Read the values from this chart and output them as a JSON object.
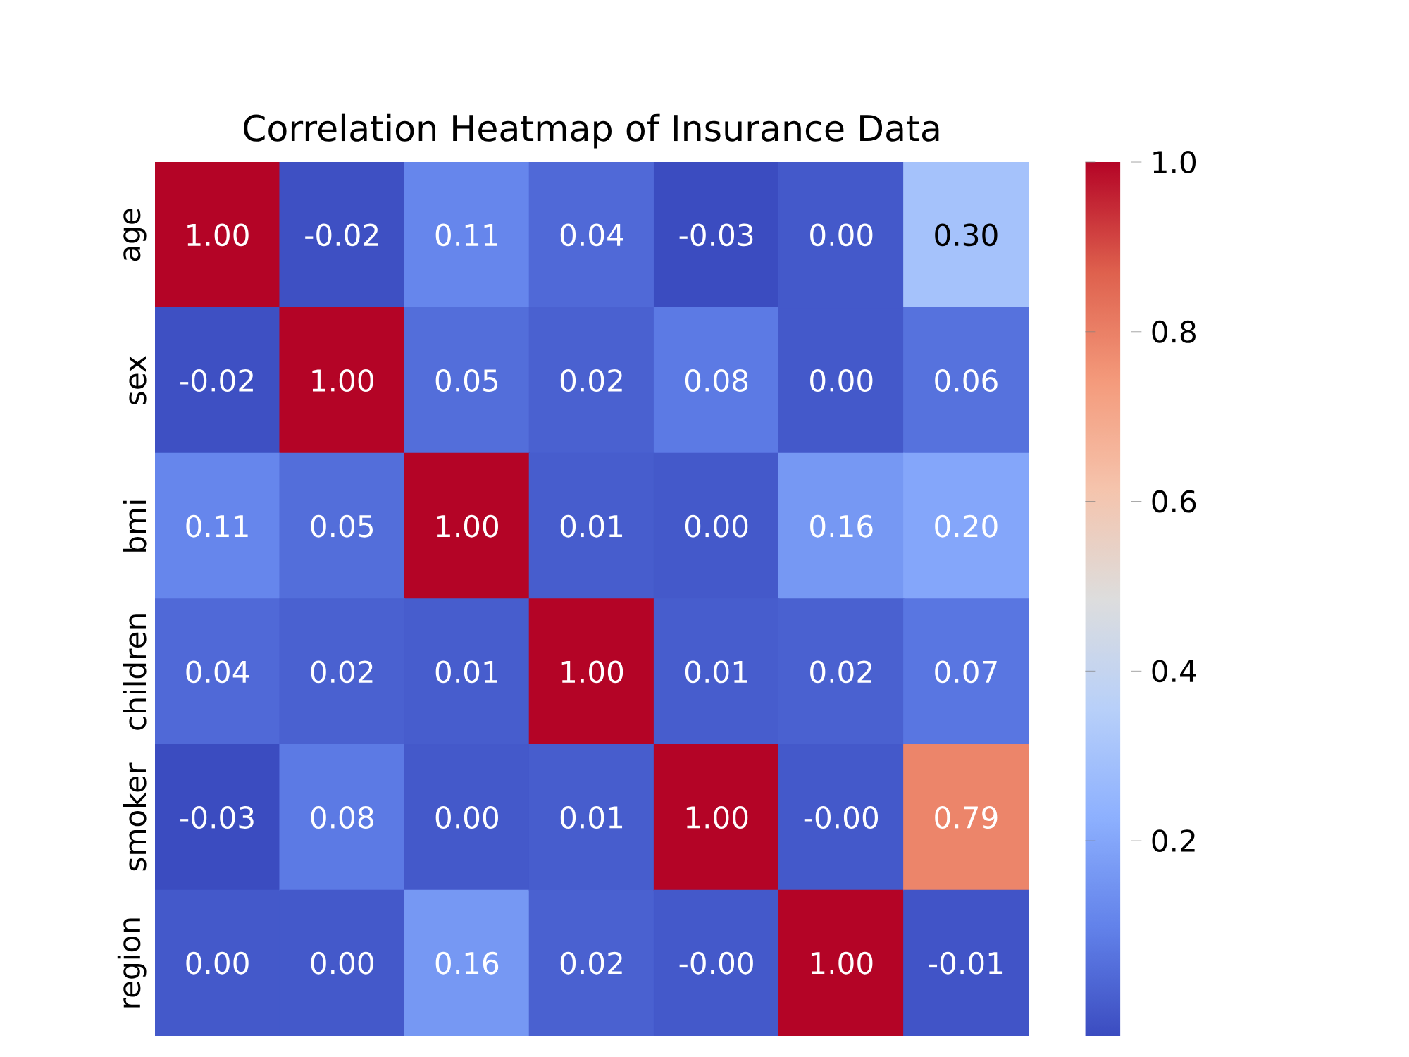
{
  "chart_data": {
    "type": "heatmap",
    "title": "Correlation Heatmap of Insurance Data",
    "categories": [
      null,
      null,
      null,
      null,
      null,
      null,
      null
    ],
    "y_categories": [
      "age",
      "sex",
      "bmi",
      "children",
      "smoker",
      "region"
    ],
    "cells": [
      [
        1.0,
        -0.02,
        0.11,
        0.04,
        -0.03,
        0.0,
        0.3
      ],
      [
        -0.02,
        1.0,
        0.05,
        0.02,
        0.08,
        0.0,
        0.06
      ],
      [
        0.11,
        0.05,
        1.0,
        0.01,
        0.0,
        0.16,
        0.2
      ],
      [
        0.04,
        0.02,
        0.01,
        1.0,
        0.01,
        0.02,
        0.07
      ],
      [
        -0.03,
        0.08,
        0.0,
        0.01,
        1.0,
        -0.0,
        0.79
      ],
      [
        0.0,
        0.0,
        0.16,
        0.02,
        -0.0,
        1.0,
        -0.01
      ]
    ],
    "cell_labels": [
      [
        "1.00",
        "-0.02",
        "0.11",
        "0.04",
        "-0.03",
        "0.00",
        "0.30"
      ],
      [
        "-0.02",
        "1.00",
        "0.05",
        "0.02",
        "0.08",
        "0.00",
        "0.06"
      ],
      [
        "0.11",
        "0.05",
        "1.00",
        "0.01",
        "0.00",
        "0.16",
        "0.20"
      ],
      [
        "0.04",
        "0.02",
        "0.01",
        "1.00",
        "0.01",
        "0.02",
        "0.07"
      ],
      [
        "-0.03",
        "0.08",
        "0.00",
        "0.01",
        "1.00",
        "-0.00",
        "0.79"
      ],
      [
        "0.00",
        "0.00",
        "0.16",
        "0.02",
        "-0.00",
        "1.00",
        "-0.01"
      ]
    ],
    "clim": [
      -0.03,
      1.0
    ],
    "cticks": [
      0.2,
      0.4,
      0.6,
      0.8,
      {
        "value": 1.0,
        "label": "1.0"
      }
    ]
  }
}
